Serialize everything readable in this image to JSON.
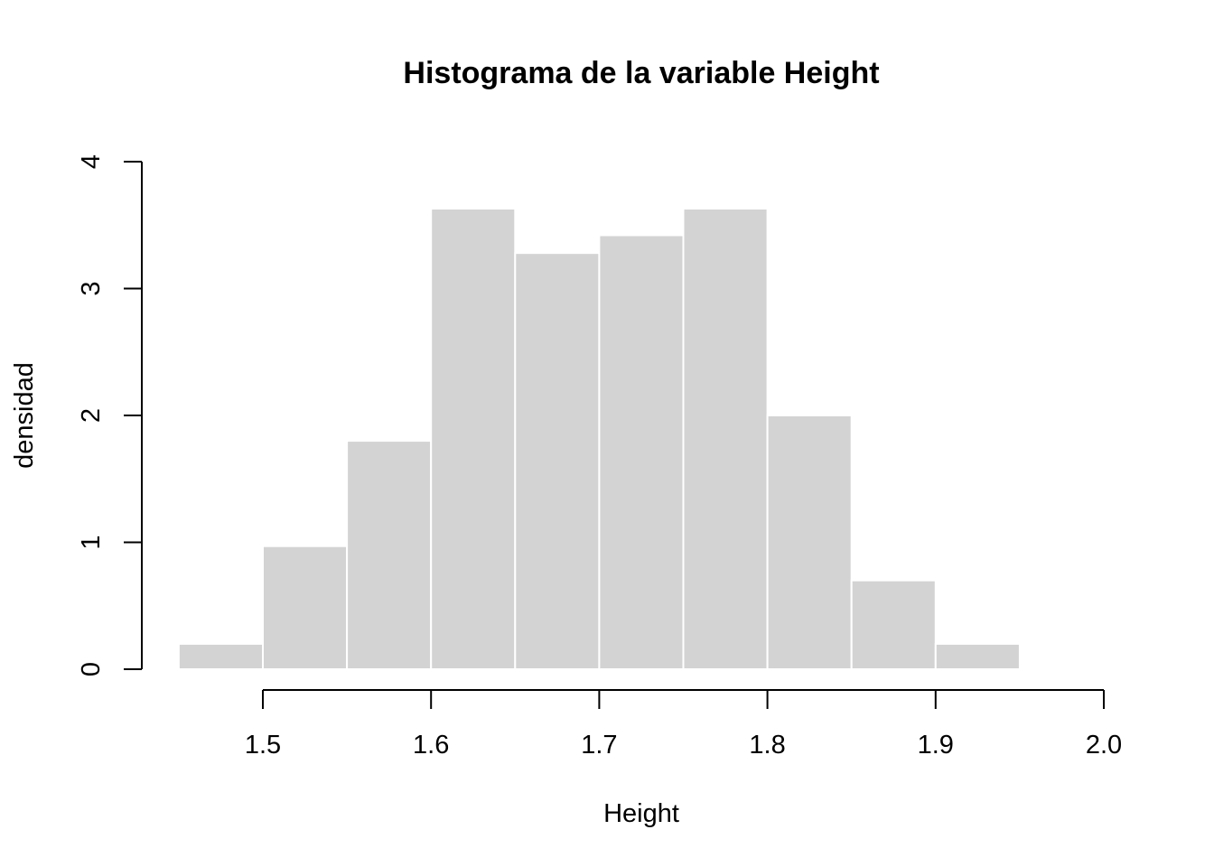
{
  "chart_data": {
    "type": "bar",
    "subtype": "histogram",
    "title": "Histograma de la variable Height",
    "xlabel": "Height",
    "ylabel": "densidad",
    "bins": [
      {
        "from": 1.45,
        "to": 1.5,
        "density": 0.2
      },
      {
        "from": 1.5,
        "to": 1.55,
        "density": 0.97
      },
      {
        "from": 1.55,
        "to": 1.6,
        "density": 1.8
      },
      {
        "from": 1.6,
        "to": 1.65,
        "density": 3.63
      },
      {
        "from": 1.65,
        "to": 1.7,
        "density": 3.28
      },
      {
        "from": 1.7,
        "to": 1.75,
        "density": 3.42
      },
      {
        "from": 1.75,
        "to": 1.8,
        "density": 3.63
      },
      {
        "from": 1.8,
        "to": 1.85,
        "density": 2.0
      },
      {
        "from": 1.85,
        "to": 1.9,
        "density": 0.7
      },
      {
        "from": 1.9,
        "to": 1.95,
        "density": 0.2
      }
    ],
    "xlim": [
      1.45,
      2.0
    ],
    "ylim": [
      0,
      4
    ],
    "x_ticks": [
      "1.5",
      "1.6",
      "1.7",
      "1.8",
      "1.9",
      "2.0"
    ],
    "y_ticks": [
      "0",
      "1",
      "2",
      "3",
      "4"
    ],
    "grid": false,
    "bar_color": "#d3d3d3",
    "bar_border_color": "#ffffff"
  }
}
